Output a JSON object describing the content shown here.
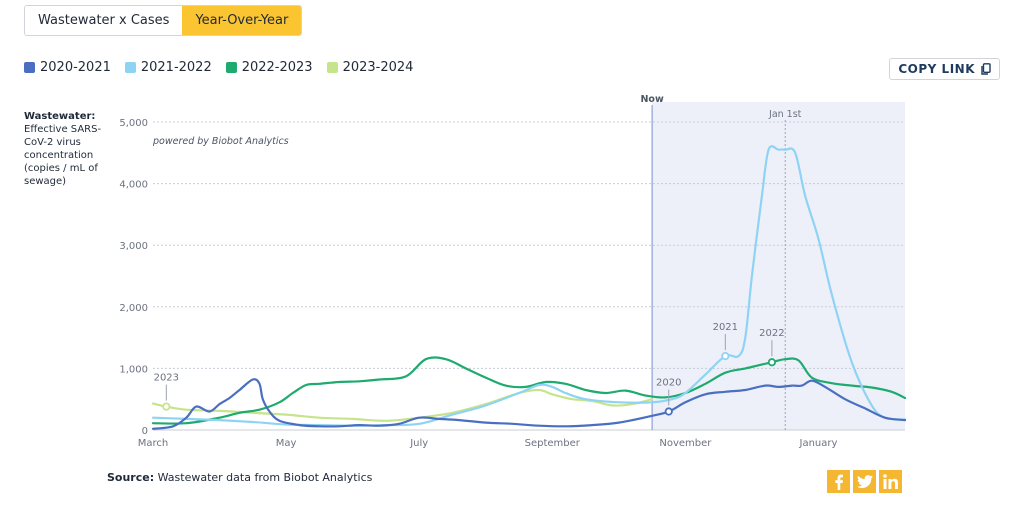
{
  "tabs": [
    {
      "label": "Wastewater x Cases",
      "active": false
    },
    {
      "label": "Year-Over-Year",
      "active": true
    }
  ],
  "copy_link": {
    "label": "COPY LINK"
  },
  "ylabel": {
    "title": "Wastewater:",
    "text": "Effective SARS-CoV-2 virus concentration (copies / mL of sewage)"
  },
  "source": {
    "prefix": "Source:",
    "text": " Wastewater data from Biobot Analytics"
  },
  "social": [
    "facebook-icon",
    "twitter-icon",
    "linkedin-icon"
  ],
  "colors": {
    "2020-2021": "#4a6fc1",
    "2021-2022": "#8fd3f4",
    "2022-2023": "#1faa6f",
    "2023-2024": "#c6e48b",
    "now_line": "#8ba3d6",
    "future_shade": "#eef0f9",
    "grid": "#c8ccd6",
    "accent": "#fbc531"
  },
  "chart_data": {
    "type": "line",
    "watermark": "powered by Biobot Analytics",
    "ylim": [
      0,
      5000
    ],
    "y_ticks": [
      0,
      1000,
      2000,
      3000,
      4000,
      5000
    ],
    "y_tick_labels": [
      "0",
      "1,000",
      "2,000",
      "3,000",
      "4,000",
      "5,000"
    ],
    "x_range": [
      0,
      11.3
    ],
    "x_ticks": [
      {
        "label": "March",
        "x": 0
      },
      {
        "label": "May",
        "x": 2
      },
      {
        "label": "July",
        "x": 4
      },
      {
        "label": "September",
        "x": 6
      },
      {
        "label": "November",
        "x": 8
      },
      {
        "label": "January",
        "x": 10
      }
    ],
    "now": {
      "label": "Now",
      "x": 7.5
    },
    "jan1": {
      "label": "Jan 1st",
      "x": 9.5
    },
    "series": [
      {
        "name": "2020-2021",
        "key": "2020-2021",
        "x": [
          0,
          0.3,
          0.5,
          0.65,
          0.85,
          1.0,
          1.15,
          1.3,
          1.5,
          1.6,
          1.65,
          1.75,
          1.9,
          2.2,
          2.5,
          2.8,
          3.1,
          3.4,
          3.7,
          4.0,
          4.3,
          4.6,
          5.0,
          5.4,
          5.8,
          6.2,
          6.6,
          7.0,
          7.5,
          7.75,
          8.0,
          8.3,
          8.6,
          8.9,
          9.2,
          9.4,
          9.6,
          9.75,
          9.9,
          10.1,
          10.4,
          10.7,
          11.0,
          11.3
        ],
        "y": [
          20,
          60,
          200,
          380,
          300,
          420,
          520,
          650,
          820,
          750,
          500,
          300,
          150,
          80,
          60,
          60,
          80,
          70,
          100,
          200,
          180,
          160,
          120,
          100,
          70,
          60,
          80,
          120,
          230,
          300,
          450,
          580,
          620,
          650,
          720,
          700,
          720,
          720,
          800,
          700,
          500,
          350,
          200,
          160
        ],
        "point": {
          "x": 7.75,
          "y": 300,
          "label": "2020"
        }
      },
      {
        "name": "2021-2022",
        "key": "2021-2022",
        "x": [
          0,
          0.5,
          1.0,
          1.5,
          2.0,
          2.5,
          3.0,
          3.5,
          4.0,
          4.5,
          5.0,
          5.5,
          5.8,
          6.0,
          6.2,
          6.5,
          7.0,
          7.5,
          7.8,
          8.0,
          8.3,
          8.6,
          8.8,
          8.9,
          9.0,
          9.15,
          9.25,
          9.4,
          9.5,
          9.65,
          9.8,
          10.0,
          10.2,
          10.5,
          10.8,
          11.0,
          11.3
        ],
        "y": [
          200,
          180,
          160,
          130,
          90,
          80,
          70,
          80,
          100,
          250,
          400,
          600,
          730,
          700,
          600,
          500,
          450,
          450,
          500,
          600,
          900,
          1200,
          1200,
          1500,
          2500,
          3800,
          4550,
          4550,
          4550,
          4500,
          3800,
          3100,
          2200,
          1100,
          400,
          200,
          170
        ],
        "point": {
          "x": 8.6,
          "y": 1200,
          "label": "2021"
        }
      },
      {
        "name": "2022-2023",
        "key": "2022-2023",
        "x": [
          0,
          0.5,
          1.0,
          1.3,
          1.6,
          1.9,
          2.1,
          2.3,
          2.5,
          2.8,
          3.1,
          3.4,
          3.8,
          4.1,
          4.4,
          4.7,
          5.0,
          5.3,
          5.6,
          5.9,
          6.2,
          6.5,
          6.8,
          7.1,
          7.4,
          7.7,
          8.0,
          8.3,
          8.6,
          8.9,
          9.1,
          9.3,
          9.5,
          9.7,
          9.9,
          10.2,
          10.5,
          10.8,
          11.1,
          11.3
        ],
        "y": [
          110,
          110,
          200,
          280,
          330,
          450,
          600,
          730,
          750,
          780,
          790,
          820,
          870,
          1150,
          1150,
          1000,
          850,
          720,
          700,
          780,
          750,
          650,
          600,
          640,
          560,
          530,
          600,
          750,
          930,
          1000,
          1050,
          1100,
          1150,
          1130,
          850,
          760,
          720,
          690,
          620,
          520
        ],
        "point": {
          "x": 9.3,
          "y": 1100,
          "label": "2022"
        }
      },
      {
        "name": "2023-2024",
        "key": "2023-2024",
        "x": [
          0,
          0.2,
          0.5,
          1.0,
          1.5,
          2.0,
          2.5,
          3.0,
          3.5,
          4.0,
          4.5,
          5.0,
          5.5,
          5.8,
          6.0,
          6.3,
          6.6,
          6.9,
          7.2,
          7.5
        ],
        "y": [
          430,
          380,
          330,
          310,
          280,
          250,
          200,
          180,
          150,
          200,
          280,
          420,
          600,
          650,
          580,
          500,
          470,
          400,
          420,
          500
        ],
        "point": {
          "x": 0.2,
          "y": 380,
          "label": "2023"
        }
      }
    ]
  }
}
